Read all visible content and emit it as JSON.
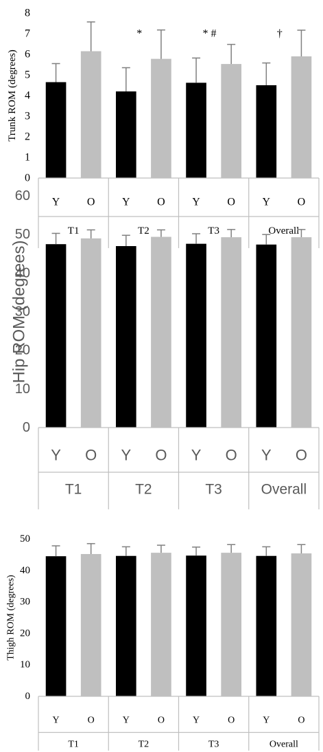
{
  "chart_data": [
    {
      "type": "bar",
      "ylabel": "Trunk ROM (degrees)",
      "ylim": [
        0,
        8
      ],
      "yticks": [
        0,
        1,
        2,
        3,
        4,
        5,
        6,
        7,
        8
      ],
      "groups": [
        "T1",
        "T2",
        "T3",
        "Overall"
      ],
      "subcategories": [
        "Y",
        "O"
      ],
      "series": [
        {
          "values": [
            4.65,
            4.2,
            4.62,
            4.5
          ],
          "errors": [
            0.9,
            1.15,
            1.2,
            1.08
          ],
          "color": "#000000"
        },
        {
          "values": [
            6.15,
            5.78,
            5.53,
            5.9
          ],
          "errors": [
            1.42,
            1.4,
            0.95,
            1.27
          ],
          "color": "#bfbfbf"
        }
      ],
      "annotations": [
        {
          "group": "T2",
          "text": "*",
          "y": 7.0
        },
        {
          "group": "T3",
          "text": "* #",
          "y": 7.0
        },
        {
          "group": "Overall",
          "text": "†",
          "y": 7.0
        }
      ],
      "grid": false
    },
    {
      "type": "bar",
      "ylabel": "Hip ROM (degrees)",
      "ylim": [
        0,
        60
      ],
      "yticks": [
        0,
        10,
        20,
        30,
        40,
        50,
        60
      ],
      "groups": [
        "T1",
        "T2",
        "T3",
        "Overall"
      ],
      "subcategories": [
        "Y",
        "O"
      ],
      "series": [
        {
          "values": [
            47.5,
            47.0,
            47.6,
            47.4
          ],
          "errors": [
            2.8,
            2.8,
            2.6,
            2.6
          ],
          "color": "#000000"
        },
        {
          "values": [
            49.0,
            49.4,
            49.3,
            49.3
          ],
          "errors": [
            2.2,
            1.8,
            2.0,
            2.0
          ],
          "color": "#bfbfbf"
        }
      ],
      "grid": false
    },
    {
      "type": "bar",
      "ylabel": "Thigh ROM (degrees)",
      "ylim": [
        0,
        50
      ],
      "yticks": [
        0,
        10,
        20,
        30,
        40,
        50
      ],
      "groups": [
        "T1",
        "T2",
        "T3",
        "Overall"
      ],
      "subcategories": [
        "Y",
        "O"
      ],
      "series": [
        {
          "values": [
            44.5,
            44.6,
            44.7,
            44.6
          ],
          "errors": [
            3.3,
            2.9,
            2.7,
            2.9
          ],
          "color": "#000000"
        },
        {
          "values": [
            45.2,
            45.6,
            45.6,
            45.4
          ],
          "errors": [
            3.3,
            2.4,
            2.6,
            2.8
          ],
          "color": "#bfbfbf"
        }
      ],
      "grid": false
    }
  ]
}
